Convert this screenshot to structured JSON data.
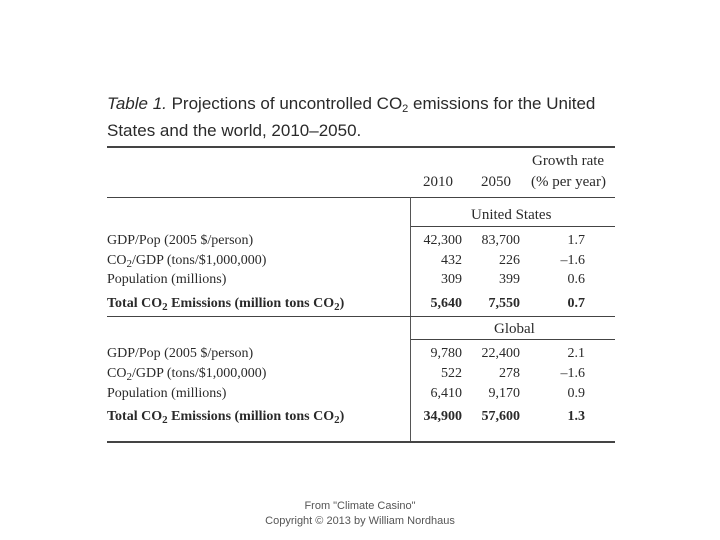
{
  "caption": {
    "label": "Table 1.",
    "text_a": " Projections of uncontrolled CO",
    "sub_a": "2",
    "text_b": " emissions for the United States and the world, 2010–2050."
  },
  "columns": {
    "y2010": "2010",
    "y2050": "2050",
    "growth_line1": "Growth rate",
    "growth_line2": "(% per year)"
  },
  "sections": [
    {
      "title": "United States",
      "rows": [
        {
          "label": "GDP/Pop (2005 $/person)",
          "v2010": "42,300",
          "v2050": "83,700",
          "growth": "1.7"
        },
        {
          "label_a": "CO",
          "label_sub": "2",
          "label_b": "/GDP (tons/$1,000,000)",
          "v2010": "432",
          "v2050": "226",
          "growth": "–1.6"
        },
        {
          "label": "Population (millions)",
          "v2010": "309",
          "v2050": "399",
          "growth": "0.6"
        },
        {
          "label_a": "Total CO",
          "label_sub": "2",
          "label_b": " Emissions (million tons CO",
          "label_sub2": "2",
          "label_c": ")",
          "v2010": "5,640",
          "v2050": "7,550",
          "growth": "0.7"
        }
      ]
    },
    {
      "title": "Global",
      "rows": [
        {
          "label": "GDP/Pop (2005 $/person)",
          "v2010": "9,780",
          "v2050": "22,400",
          "growth": "2.1"
        },
        {
          "label_a": "CO",
          "label_sub": "2",
          "label_b": "/GDP (tons/$1,000,000)",
          "v2010": "522",
          "v2050": "278",
          "growth": "–1.6"
        },
        {
          "label": "Population (millions)",
          "v2010": "6,410",
          "v2050": "9,170",
          "growth": "0.9"
        },
        {
          "label_a": "Total CO",
          "label_sub": "2",
          "label_b": " Emissions (million tons CO",
          "label_sub2": "2",
          "label_c": ")",
          "v2010": "34,900",
          "v2050": "57,600",
          "growth": "1.3"
        }
      ]
    }
  ],
  "footer": {
    "line1": "From \"Climate Casino\"",
    "line2": "Copyright © 2013 by William Nordhaus"
  }
}
